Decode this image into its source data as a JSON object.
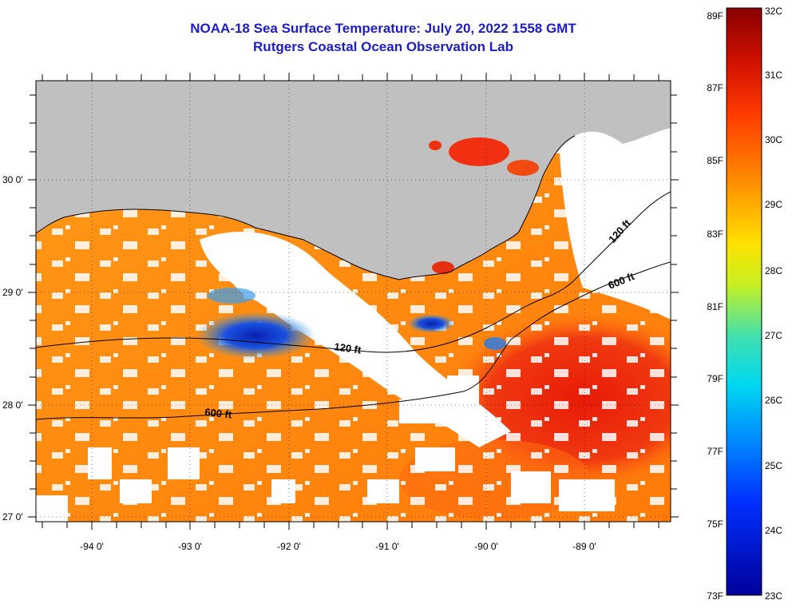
{
  "title": "NOAA-18 Sea Surface Temperature:  July 20, 2022 1558 GMT",
  "subtitle": "Rutgers Coastal Ocean Observation Lab",
  "lon_labels": [
    "-94 0'",
    "-93 0'",
    "-92 0'",
    "-91 0'",
    "-90 0'",
    "-89 0'"
  ],
  "lat_labels": [
    "30 0'",
    "29 0'",
    "28 0'",
    "27 0'"
  ],
  "contours": {
    "c120_upper": "120 ft",
    "c600_upper": "600 ft",
    "c120_mid": "120 ft",
    "c600_lower": "600 ft"
  },
  "colorbar": {
    "f_labels": [
      "89F",
      "87F",
      "85F",
      "83F",
      "81F",
      "79F",
      "77F",
      "75F",
      "73F"
    ],
    "c_labels": [
      "32C",
      "31C",
      "30C",
      "29C",
      "28C",
      "27C",
      "26C",
      "25C",
      "24C",
      "23C"
    ],
    "colors": [
      "#8a0000",
      "#d01000",
      "#ff3a00",
      "#ff7a00",
      "#ffb000",
      "#ffe000",
      "#c8f020",
      "#40e0b0",
      "#00d8f0",
      "#0090ff",
      "#0030ff",
      "#00009a"
    ]
  },
  "colors": {
    "land": "#c0c0c0",
    "cloud": "#ffffff",
    "sst_warm": "#ff8c10",
    "sst_hot": "#f03010",
    "sst_cool": "#1030d0",
    "title": "#1c1cc8"
  }
}
